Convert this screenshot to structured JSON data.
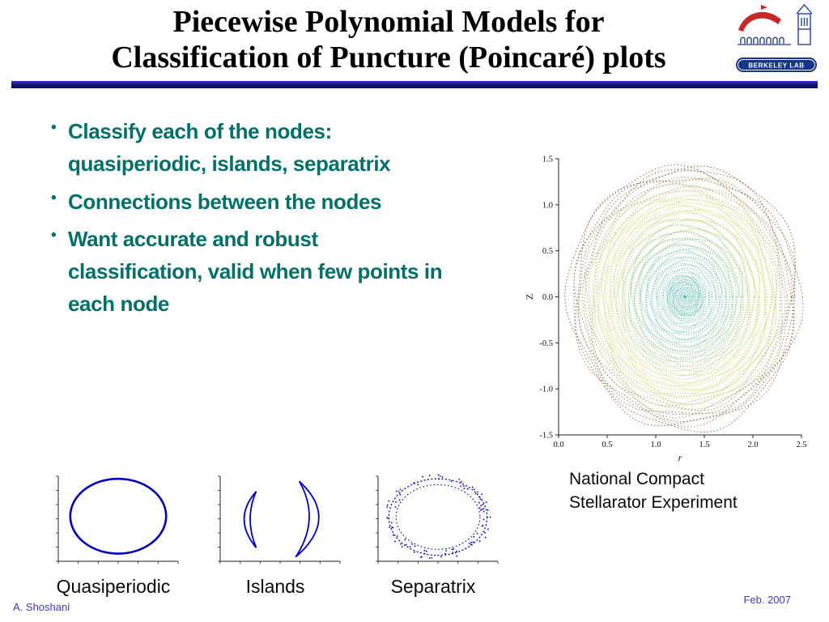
{
  "slide": {
    "title": {
      "line1": "Piecewise Polynomial Models for",
      "line2": "Classification of Puncture (Poincaré) plots"
    },
    "logo": {
      "label": "BERKELEY LAB"
    },
    "bullet_char": "•",
    "bullets": [
      {
        "lines": [
          "Classify each of the nodes:",
          "quasiperiodic, islands, separatrix"
        ]
      },
      {
        "lines": [
          "Connections between the nodes"
        ]
      },
      {
        "lines": [
          "Want accurate and robust",
          "classification, valid when few points in",
          "each node"
        ]
      }
    ],
    "caption": {
      "line1": "National Compact",
      "line2": "Stellarator Experiment"
    },
    "mini_labels": [
      "Quasiperiodic",
      "Islands",
      "Separatrix"
    ],
    "footer": {
      "left": "A. Shoshani",
      "right": "Feb. 2007"
    }
  },
  "colors": {
    "divider": "#16167e",
    "bullet_text": "#007068",
    "footer_text": "#3c3cc0",
    "axis": "#222222",
    "curve_blue": "#0000bb",
    "logo_blue": "#16368c",
    "logo_red": "#c62828"
  },
  "chart_data": [
    {
      "name": "poincare-stellarator",
      "type": "scatter",
      "title": "National Compact Stellarator Experiment",
      "xlabel": "r",
      "ylabel": "Z",
      "xlim": [
        0.0,
        2.5
      ],
      "ylim": [
        -1.5,
        1.5
      ],
      "xtick_labels": [
        "0.0",
        "0.5",
        "1.0",
        "1.5",
        "2.0",
        "2.5"
      ],
      "ytick_labels": [
        "1.5",
        "1.0",
        "0.5",
        "0.0",
        "-0.5",
        "-1.0",
        "-1.5"
      ],
      "grid": false,
      "legend": false,
      "description": "Nested quasiperiodic flux-surface puncture contours, teal at the magnetic axis grading through green and yellow to brown at the outermost surfaces",
      "center": [
        1.3,
        0.0
      ],
      "n_rings": 54,
      "outer_rx": 1.18,
      "outer_ry": 1.42,
      "color_stops": [
        {
          "t": 0.0,
          "color": "#45b7ae"
        },
        {
          "t": 0.3,
          "color": "#3db39b"
        },
        {
          "t": 0.45,
          "color": "#62b860"
        },
        {
          "t": 0.58,
          "color": "#a9c544"
        },
        {
          "t": 0.7,
          "color": "#d6cc38"
        },
        {
          "t": 0.8,
          "color": "#cdb13c"
        },
        {
          "t": 0.88,
          "color": "#a5742f"
        },
        {
          "t": 1.0,
          "color": "#7c3a22"
        }
      ]
    },
    {
      "name": "quasiperiodic-node",
      "type": "scatter",
      "title": "Quasiperiodic",
      "shape": "closed-curve",
      "curve_color": "#0000bb",
      "description": "Single closed elliptical curve of puncture points"
    },
    {
      "name": "islands-node",
      "type": "scatter",
      "title": "Islands",
      "shape": "island-arcs",
      "curve_color": "#0000bb",
      "description": "Two crescent-shaped island chains of puncture points"
    },
    {
      "name": "separatrix-node",
      "type": "scatter",
      "title": "Separatrix",
      "shape": "dotted-separatrix",
      "curve_color": "#0000bb",
      "description": "Dotted double boundary curve with scattered puncture points"
    }
  ]
}
